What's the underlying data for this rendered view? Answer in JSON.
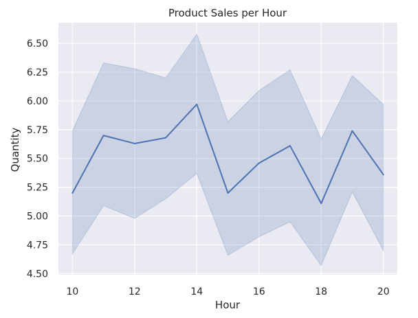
{
  "chart_data": {
    "type": "line",
    "title": "Product Sales per Hour",
    "xlabel": "Hour",
    "ylabel": "Quantity",
    "x": [
      10,
      11,
      12,
      13,
      14,
      15,
      16,
      17,
      18,
      19,
      20
    ],
    "series": [
      {
        "values": [
          5.2,
          5.7,
          5.63,
          5.68,
          5.97,
          5.2,
          5.46,
          5.61,
          5.11,
          5.74,
          5.36
        ],
        "ci_upper": [
          5.74,
          6.33,
          6.28,
          6.2,
          6.58,
          5.82,
          6.09,
          6.27,
          5.67,
          6.22,
          5.97
        ],
        "ci_lower": [
          4.67,
          5.09,
          4.98,
          5.15,
          5.37,
          4.66,
          4.82,
          4.95,
          4.57,
          5.21,
          4.7
        ],
        "color": "#4c72b0"
      }
    ],
    "xticks": [
      "10",
      "12",
      "14",
      "16",
      "18",
      "20"
    ],
    "yticks": [
      "4.50",
      "4.75",
      "5.00",
      "5.25",
      "5.50",
      "5.75",
      "6.00",
      "6.25",
      "6.50"
    ],
    "xlim": [
      9.55,
      20.45
    ],
    "ylim": [
      4.49,
      6.68
    ],
    "grid": true,
    "style": {
      "background": "#eaeaf2",
      "grid_color": "#ffffff",
      "band_opacity": 0.2
    }
  }
}
